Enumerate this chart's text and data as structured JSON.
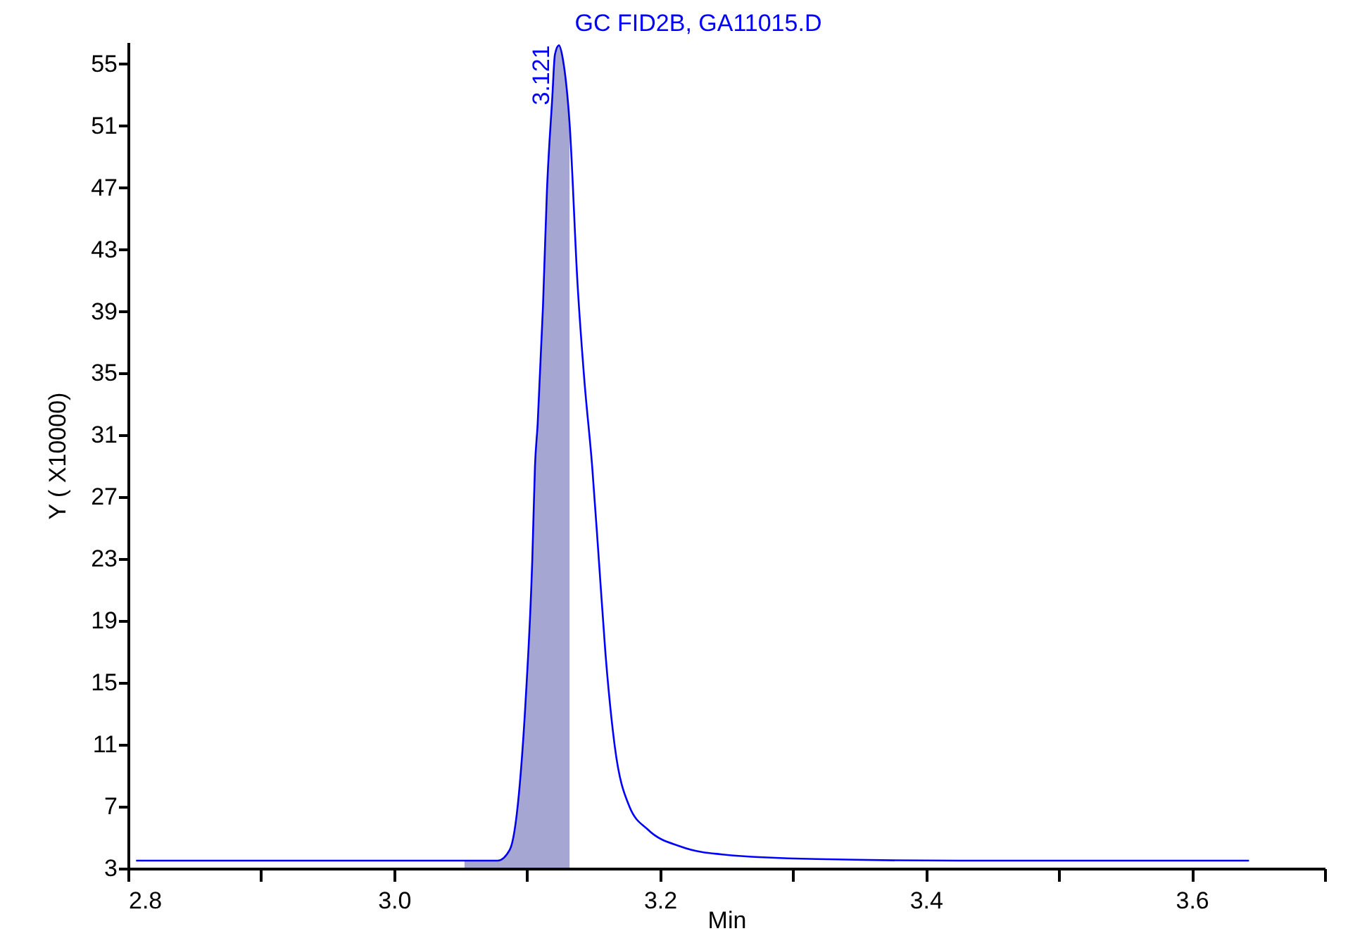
{
  "chart_data": {
    "type": "line",
    "title": "GC FID2B, GA11015.D",
    "xlabel": "Min",
    "ylabel": "Y ( X10000)",
    "series": [
      {
        "color": "#0000ff",
        "x": [
          2.806,
          3.053,
          3.078,
          3.087,
          3.094,
          3.099,
          3.104,
          3.106,
          3.108,
          3.112,
          3.115,
          3.119,
          3.121,
          3.124,
          3.127,
          3.132,
          3.138,
          3.143,
          3.149,
          3.154,
          3.159,
          3.166,
          3.177,
          3.191,
          3.216,
          3.247,
          3.318,
          3.424,
          3.643
        ],
        "values": [
          3.5,
          3.5,
          3.5,
          4.2,
          7.9,
          13.9,
          23.0,
          29.0,
          31.7,
          39.3,
          46.8,
          52.8,
          55.6,
          56.2,
          55.3,
          51.2,
          40.8,
          34.7,
          29.0,
          23.0,
          16.9,
          10.9,
          7.0,
          5.5,
          4.4,
          3.9,
          3.6,
          3.5,
          3.5
        ]
      },
      {
        "type": "area",
        "color": "#000080",
        "x": [
          3.053,
          3.078,
          3.087,
          3.094,
          3.099,
          3.104,
          3.106,
          3.108,
          3.112,
          3.115,
          3.119,
          3.121,
          3.124,
          3.127,
          3.132
        ],
        "values": [
          3.5,
          3.5,
          4.2,
          7.9,
          13.9,
          23.0,
          29.0,
          31.7,
          39.3,
          46.8,
          52.8,
          55.6,
          56.2,
          55.3,
          51.2
        ]
      }
    ],
    "annotations": [
      {
        "text": "3.121",
        "x": 3.121,
        "y": 56.2
      }
    ],
    "xlim": [
      2.8,
      3.7
    ],
    "xticks": [
      2.8,
      {
        "value": 2.9,
        "label": null
      },
      {
        "value": 3,
        "label": "3.0"
      },
      {
        "value": 3.1,
        "label": null
      },
      3.2,
      {
        "value": 3.3,
        "label": null
      },
      3.4,
      {
        "value": 3.5,
        "label": null
      },
      3.6,
      {
        "value": 3.7,
        "label": null
      }
    ],
    "ylim": [
      3,
      56.4
    ],
    "yticks": [
      3,
      7,
      11,
      15,
      19,
      23,
      27,
      31,
      35,
      39,
      43,
      47,
      51,
      55
    ],
    "grid": false,
    "marker": "none",
    "line_style": "solid"
  }
}
